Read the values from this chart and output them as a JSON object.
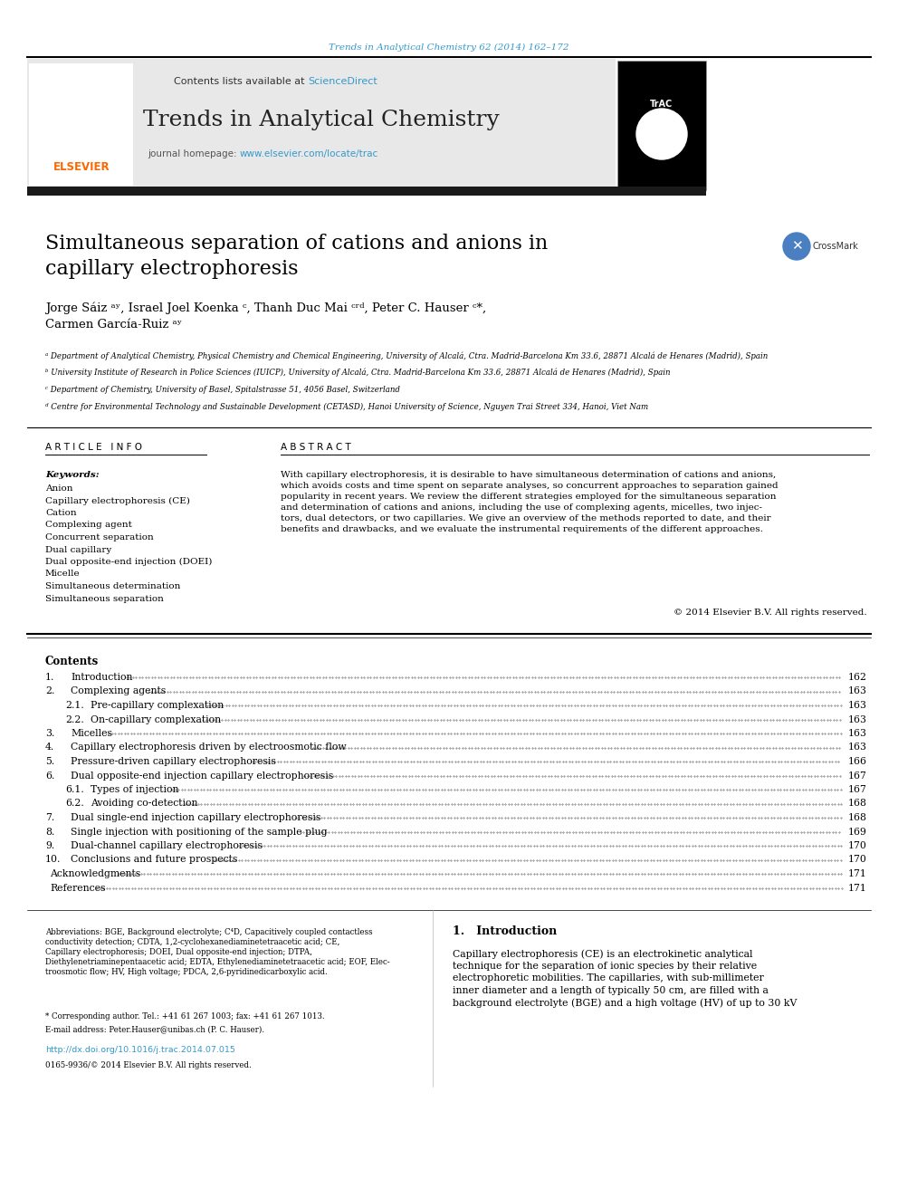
{
  "journal_line": "Trends in Analytical Chemistry 62 (2014) 162–172",
  "journal_line_color": "#3399cc",
  "contents_lists": "Contents lists available at ",
  "science_direct": "ScienceDirect",
  "science_direct_color": "#3399cc",
  "journal_name": "Trends in Analytical Chemistry",
  "journal_homepage": "journal homepage: ",
  "journal_url": "www.elsevier.com/locate/trac",
  "journal_url_color": "#3399cc",
  "title": "Simultaneous separation of cations and anions in\ncapillary electrophoresis",
  "authors_line1": "Jorge Sáiz ᵃʸ, Israel Joel Koenka ᶜ, Thanh Duc Mai ᶜʳᵈ, Peter C. Hauser ᶜ*,",
  "authors_line2": "Carmen García-Ruiz ᵃʸ",
  "affil_a": "ᵃ Department of Analytical Chemistry, Physical Chemistry and Chemical Engineering, University of Alcalá, Ctra. Madrid-Barcelona Km 33.6, 28871 Alcalá de Henares (Madrid), Spain",
  "affil_b": "ᵇ University Institute of Research in Police Sciences (IUICP), University of Alcalá, Ctra. Madrid-Barcelona Km 33.6, 28871 Alcalá de Henares (Madrid), Spain",
  "affil_c": "ᶜ Department of Chemistry, University of Basel, Spitalstrasse 51, 4056 Basel, Switzerland",
  "affil_d": "ᵈ Centre for Environmental Technology and Sustainable Development (CETASD), Hanoi University of Science, Nguyen Trai Street 334, Hanoi, Viet Nam",
  "article_info_label": "A R T I C L E   I N F O",
  "abstract_label": "A B S T R A C T",
  "keywords_label": "Keywords:",
  "keywords": [
    "Anion",
    "Capillary electrophoresis (CE)",
    "Cation",
    "Complexing agent",
    "Concurrent separation",
    "Dual capillary",
    "Dual opposite-end injection (DOEI)",
    "Micelle",
    "Simultaneous determination",
    "Simultaneous separation"
  ],
  "abstract_text": "With capillary electrophoresis, it is desirable to have simultaneous determination of cations and anions,\nwhich avoids costs and time spent on separate analyses, so concurrent approaches to separation gained\npopularity in recent years. We review the different strategies employed for the simultaneous separation\nand determination of cations and anions, including the use of complexing agents, micelles, two injec-\ntors, dual detectors, or two capillaries. We give an overview of the methods reported to date, and their\nbenefits and drawbacks, and we evaluate the instrumental requirements of the different approaches.",
  "abstract_copyright": "© 2014 Elsevier B.V. All rights reserved.",
  "contents_label": "Contents",
  "toc": [
    {
      "num": "1.",
      "indent": 0,
      "title": "Introduction",
      "page": "162"
    },
    {
      "num": "2.",
      "indent": 0,
      "title": "Complexing agents",
      "page": "163"
    },
    {
      "num": "2.1.",
      "indent": 1,
      "title": "Pre-capillary complexation",
      "page": "163"
    },
    {
      "num": "2.2.",
      "indent": 1,
      "title": "On-capillary complexation",
      "page": "163"
    },
    {
      "num": "3.",
      "indent": 0,
      "title": "Micelles",
      "page": "163"
    },
    {
      "num": "4.",
      "indent": 0,
      "title": "Capillary electrophoresis driven by electroosmotic flow",
      "page": "163"
    },
    {
      "num": "5.",
      "indent": 0,
      "title": "Pressure-driven capillary electrophoresis",
      "page": "166"
    },
    {
      "num": "6.",
      "indent": 0,
      "title": "Dual opposite-end injection capillary electrophoresis",
      "page": "167"
    },
    {
      "num": "6.1.",
      "indent": 1,
      "title": "Types of injection",
      "page": "167"
    },
    {
      "num": "6.2.",
      "indent": 1,
      "title": "Avoiding co-detection",
      "page": "168"
    },
    {
      "num": "7.",
      "indent": 0,
      "title": "Dual single-end injection capillary electrophoresis",
      "page": "168"
    },
    {
      "num": "8.",
      "indent": 0,
      "title": "Single injection with positioning of the sample plug",
      "page": "169"
    },
    {
      "num": "9.",
      "indent": 0,
      "title": "Dual-channel capillary electrophoresis",
      "page": "170"
    },
    {
      "num": "10.",
      "indent": 0,
      "title": "Conclusions and future prospects",
      "page": "170"
    },
    {
      "num": "",
      "indent": 0,
      "title": "Acknowledgments",
      "page": "171"
    },
    {
      "num": "",
      "indent": 0,
      "title": "References",
      "page": "171"
    }
  ],
  "intro_section": "1.   Introduction",
  "intro_text": "Capillary electrophoresis (CE) is an electrokinetic analytical\ntechnique for the separation of ionic species by their relative\nelectrophoretic mobilities. The capillaries, with sub-millimeter\ninner diameter and a length of typically 50 cm, are filled with a\nbackground electrolyte (BGE) and a high voltage (HV) of up to 30 kV",
  "footnote_abbrev": "Abbreviations: BGE, Background electrolyte; C⁴D, Capacitively coupled contactless\nconductivity detection; CDTA, 1,2-cyclohexanediaminetetraacetic acid; CE,\nCapillary electrophoresis; DOEI, Dual opposite-end injection; DTPA,\nDiethylenetriaminepentaacetic acid; EDTA, Ethylenediaminetetraacetic acid; EOF, Elec-\ntroosmotic flow; HV, High voltage; PDCA, 2,6-pyridinedicarboxylic acid.",
  "footnote_star": "* Corresponding author. Tel.: +41 61 267 1003; fax: +41 61 267 1013.",
  "footnote_email": "E-mail address: Peter.Hauser@unibas.ch (P. C. Hauser).",
  "doi_line": "http://dx.doi.org/10.1016/j.trac.2014.07.015",
  "doi_line_color": "#3399cc",
  "issn_line": "0165-9936/© 2014 Elsevier B.V. All rights reserved.",
  "bg_header": "#e8e8e8",
  "black_bar_color": "#1a1a1a",
  "text_color": "#000000"
}
